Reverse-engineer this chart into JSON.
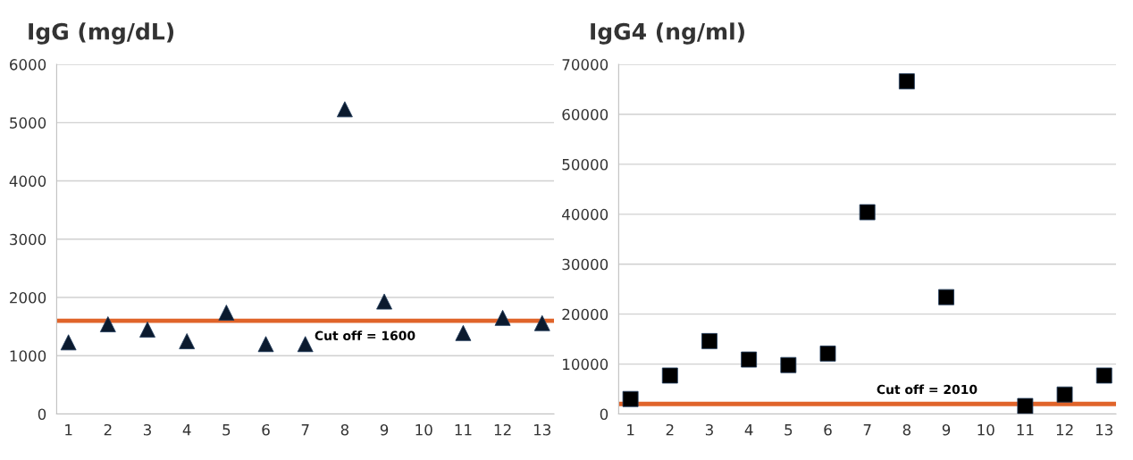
{
  "chart_data": [
    {
      "type": "scatter",
      "title": "IgG (mg/dL)",
      "categories": [
        "1",
        "2",
        "3",
        "4",
        "5",
        "6",
        "7",
        "8",
        "9",
        "10",
        "11",
        "12",
        "13"
      ],
      "series": [
        {
          "color": "#0b1a2e",
          "values": [
            1230,
            1540,
            1450,
            1250,
            1740,
            1200,
            1200,
            5230,
            1930,
            null,
            1390,
            1650,
            1560
          ]
        }
      ],
      "marker": "triangle",
      "ylim": [
        0,
        6000
      ],
      "yticks": [
        0,
        1000,
        2000,
        3000,
        4000,
        5000,
        6000
      ],
      "grid": "y",
      "legend": false,
      "ref_lines": [
        {
          "axis": "y",
          "value": 1600,
          "label": "Cut off = 1600",
          "color": "#e0642a"
        }
      ]
    },
    {
      "type": "scatter",
      "title": "IgG4 (ng/ml)",
      "categories": [
        "1",
        "2",
        "3",
        "4",
        "5",
        "6",
        "7",
        "8",
        "9",
        "10",
        "11",
        "12",
        "13"
      ],
      "series": [
        {
          "color": "#000000",
          "values": [
            3000,
            7700,
            14600,
            10900,
            9800,
            12100,
            40400,
            66600,
            23400,
            null,
            1600,
            3900,
            7700
          ]
        }
      ],
      "marker": "square",
      "ylim": [
        0,
        70000
      ],
      "yticks": [
        0,
        10000,
        20000,
        30000,
        40000,
        50000,
        60000,
        70000
      ],
      "grid": "y",
      "legend": false,
      "ref_lines": [
        {
          "axis": "y",
          "value": 2010,
          "label": "Cut off = 2010",
          "color": "#e0642a"
        }
      ]
    }
  ]
}
